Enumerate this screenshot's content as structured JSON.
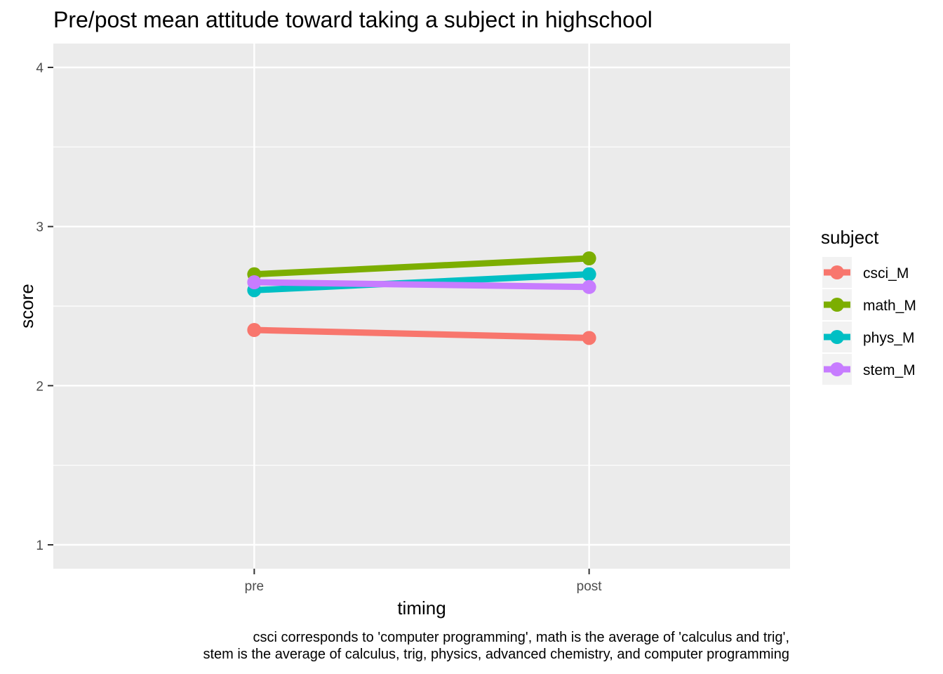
{
  "chart_data": {
    "type": "line",
    "title": "Pre/post mean attitude toward taking a subject in highschool",
    "xlabel": "timing",
    "ylabel": "score",
    "categories": [
      "pre",
      "post"
    ],
    "ylim": [
      0.85,
      4.15
    ],
    "yticks": [
      1,
      2,
      3,
      4
    ],
    "grid": true,
    "legend": {
      "title": "subject",
      "position": "right"
    },
    "series": [
      {
        "name": "csci_M",
        "color": "#F8766D",
        "values": [
          2.35,
          2.3
        ]
      },
      {
        "name": "math_M",
        "color": "#7CAE00",
        "values": [
          2.7,
          2.8
        ]
      },
      {
        "name": "phys_M",
        "color": "#00BFC4",
        "values": [
          2.6,
          2.7
        ]
      },
      {
        "name": "stem_M",
        "color": "#C77CFF",
        "values": [
          2.65,
          2.62
        ]
      }
    ],
    "caption": [
      "csci corresponds to 'computer programming', math is the average of 'calculus and trig',",
      "stem is the average of calculus, trig, physics, advanced chemistry, and computer programming"
    ]
  }
}
